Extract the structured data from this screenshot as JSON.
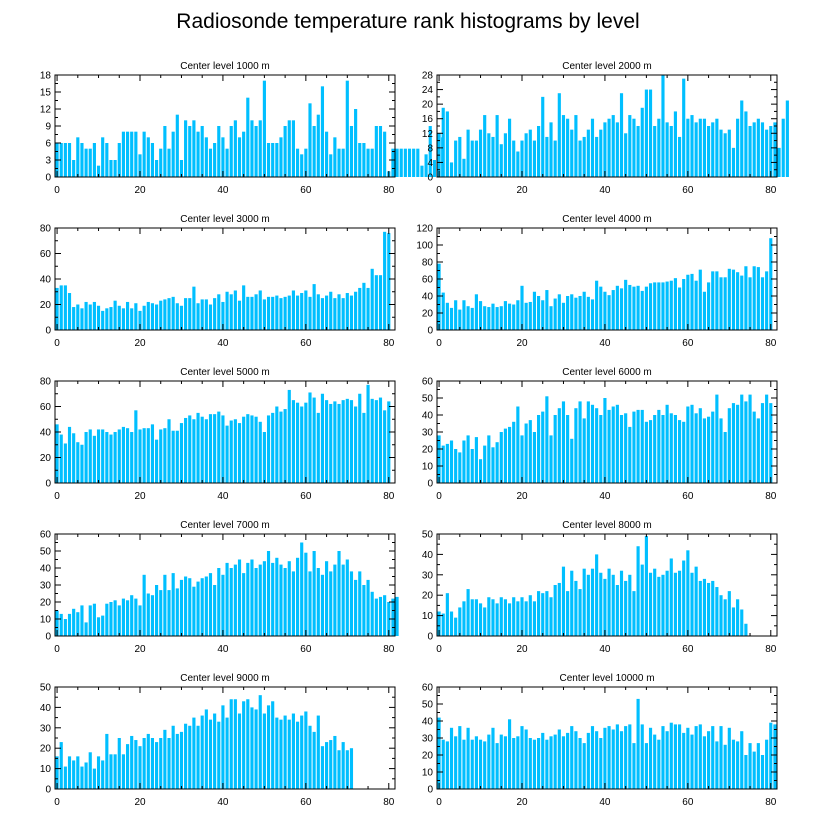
{
  "figure": {
    "title": "Radiosonde temperature rank histograms by level",
    "bar_color": "#00bfff",
    "axis_color": "#000000"
  },
  "chart_data": [
    {
      "type": "bar",
      "title": "Center level 1000 m",
      "xlim": [
        -0.5,
        81.5
      ],
      "ylim": [
        0,
        18
      ],
      "xticks": [
        0,
        20,
        40,
        60,
        80
      ],
      "yticks": [
        0,
        3,
        6,
        9,
        12,
        15,
        18
      ],
      "values": [
        6,
        6,
        6,
        6,
        3,
        7,
        6,
        5,
        5,
        6,
        2,
        7,
        6,
        3,
        3,
        6,
        8,
        8,
        8,
        8,
        4,
        8,
        7,
        6,
        3,
        5,
        9,
        5,
        8,
        11,
        3,
        10,
        9,
        10,
        8,
        9,
        7,
        5,
        6,
        9,
        7,
        5,
        9,
        10,
        7,
        8,
        14,
        10,
        9,
        10,
        17,
        6,
        6,
        6,
        7,
        9,
        10,
        10,
        5,
        4,
        5,
        13,
        9,
        11,
        16,
        8,
        4,
        7,
        5,
        5,
        17,
        9,
        12,
        6,
        6,
        5,
        5,
        9,
        9,
        8,
        1,
        5,
        5,
        5,
        5,
        5,
        5,
        5,
        2,
        4,
        9,
        3,
        6,
        7
      ],
      "note": ""
    },
    {
      "type": "bar",
      "title": "Center level 2000 m",
      "xlim": [
        -0.5,
        81.5
      ],
      "ylim": [
        0,
        28
      ],
      "xticks": [
        0,
        20,
        40,
        60,
        80
      ],
      "yticks": [
        0,
        4,
        8,
        12,
        16,
        20,
        24,
        28
      ],
      "values": [
        12,
        19,
        18,
        4,
        10,
        11,
        5,
        13,
        10,
        10,
        13,
        17,
        12,
        11,
        17,
        9,
        12,
        16,
        10,
        7,
        10,
        12,
        13,
        10,
        14,
        22,
        11,
        15,
        10,
        23,
        17,
        16,
        13,
        17,
        10,
        11,
        13,
        16,
        11,
        13,
        15,
        16,
        17,
        15,
        23,
        12,
        17,
        16,
        14,
        19,
        24,
        24,
        14,
        16,
        28,
        15,
        14,
        18,
        11,
        27,
        16,
        17,
        15,
        16,
        16,
        14,
        15,
        16,
        13,
        12,
        13,
        8,
        16,
        21,
        18,
        14,
        15,
        16,
        15,
        13,
        14,
        15,
        8,
        16,
        21
      ],
      "note": ""
    },
    {
      "type": "bar",
      "title": "Center level 3000 m",
      "xlim": [
        -0.5,
        81.5
      ],
      "ylim": [
        0,
        80
      ],
      "xticks": [
        0,
        20,
        40,
        60,
        80
      ],
      "yticks": [
        0,
        20,
        40,
        60,
        80
      ],
      "values": [
        33,
        35,
        35,
        29,
        18,
        20,
        17,
        22,
        20,
        22,
        19,
        15,
        17,
        18,
        23,
        19,
        17,
        22,
        17,
        21,
        15,
        19,
        22,
        21,
        20,
        23,
        24,
        25,
        26,
        21,
        19,
        25,
        25,
        34,
        21,
        24,
        24,
        20,
        25,
        28,
        22,
        30,
        28,
        31,
        23,
        35,
        26,
        26,
        28,
        31,
        24,
        26,
        26,
        27,
        25,
        26,
        27,
        31,
        27,
        29,
        31,
        26,
        36,
        28,
        25,
        27,
        30,
        25,
        28,
        25,
        29,
        27,
        30,
        33,
        37,
        33,
        48,
        43,
        43,
        77,
        76
      ],
      "note": ""
    },
    {
      "type": "bar",
      "title": "Center level 4000 m",
      "xlim": [
        -0.5,
        81.5
      ],
      "ylim": [
        0,
        120
      ],
      "xticks": [
        0,
        20,
        40,
        60,
        80
      ],
      "yticks": [
        0,
        20,
        40,
        60,
        80,
        100,
        120
      ],
      "values": [
        78,
        44,
        32,
        26,
        35,
        24,
        35,
        28,
        26,
        42,
        34,
        28,
        27,
        31,
        27,
        28,
        34,
        31,
        30,
        35,
        52,
        32,
        33,
        45,
        40,
        35,
        47,
        28,
        37,
        42,
        32,
        40,
        42,
        38,
        40,
        45,
        39,
        36,
        58,
        51,
        45,
        41,
        47,
        52,
        49,
        59,
        53,
        51,
        52,
        46,
        51,
        55,
        56,
        56,
        56,
        57,
        58,
        61,
        50,
        60,
        65,
        66,
        58,
        71,
        45,
        56,
        69,
        69,
        62,
        62,
        72,
        71,
        68,
        64,
        75,
        62,
        75,
        74,
        62,
        69,
        108
      ],
      "note": ""
    },
    {
      "type": "bar",
      "title": "Center level 5000 m",
      "xlim": [
        -0.5,
        81.5
      ],
      "ylim": [
        0,
        80
      ],
      "xticks": [
        0,
        20,
        40,
        60,
        80
      ],
      "yticks": [
        0,
        20,
        40,
        60,
        80
      ],
      "values": [
        46,
        38,
        31,
        44,
        39,
        32,
        30,
        40,
        42,
        37,
        42,
        42,
        40,
        38,
        40,
        42,
        44,
        43,
        40,
        57,
        42,
        43,
        43,
        46,
        34,
        42,
        43,
        50,
        41,
        41,
        47,
        51,
        53,
        50,
        55,
        52,
        50,
        54,
        54,
        56,
        53,
        45,
        49,
        50,
        47,
        52,
        54,
        53,
        52,
        48,
        40,
        53,
        55,
        60,
        56,
        58,
        73,
        65,
        63,
        60,
        63,
        71,
        67,
        55,
        70,
        65,
        62,
        64,
        62,
        65,
        66,
        65,
        60,
        70,
        55,
        77,
        66,
        65,
        67,
        57,
        64
      ],
      "note": ""
    },
    {
      "type": "bar",
      "title": "Center level 6000 m",
      "xlim": [
        -0.5,
        81.5
      ],
      "ylim": [
        0,
        60
      ],
      "xticks": [
        0,
        20,
        40,
        60,
        80
      ],
      "yticks": [
        0,
        10,
        20,
        30,
        40,
        50,
        60
      ],
      "values": [
        28,
        22,
        23,
        25,
        20,
        18,
        25,
        28,
        20,
        27,
        14,
        22,
        28,
        21,
        24,
        30,
        32,
        33,
        36,
        45,
        28,
        35,
        37,
        30,
        40,
        42,
        51,
        28,
        40,
        44,
        48,
        40,
        26,
        44,
        48,
        38,
        48,
        46,
        44,
        40,
        50,
        43,
        45,
        46,
        40,
        41,
        33,
        42,
        43,
        43,
        36,
        37,
        40,
        43,
        40,
        46,
        41,
        40,
        37,
        36,
        45,
        46,
        41,
        44,
        38,
        39,
        42,
        52,
        38,
        30,
        44,
        47,
        46,
        52,
        48,
        52,
        42,
        38,
        47,
        52,
        47
      ],
      "note": ""
    },
    {
      "type": "bar",
      "title": "Center level 7000 m",
      "xlim": [
        -0.5,
        81.5
      ],
      "ylim": [
        0,
        60
      ],
      "xticks": [
        0,
        20,
        40,
        60,
        80
      ],
      "yticks": [
        0,
        10,
        20,
        30,
        40,
        50,
        60
      ],
      "values": [
        15,
        13,
        10,
        13,
        16,
        14,
        18,
        8,
        18,
        19,
        11,
        12,
        19,
        20,
        21,
        18,
        22,
        21,
        24,
        22,
        18,
        36,
        25,
        24,
        30,
        27,
        36,
        27,
        37,
        28,
        33,
        35,
        34,
        29,
        32,
        34,
        35,
        37,
        30,
        40,
        36,
        43,
        40,
        42,
        45,
        37,
        43,
        45,
        40,
        42,
        44,
        50,
        43,
        46,
        42,
        40,
        44,
        38,
        46,
        55,
        49,
        38,
        50,
        40,
        36,
        44,
        38,
        42,
        50,
        42,
        45,
        38,
        33,
        38,
        30,
        33,
        26,
        22,
        23,
        24,
        20,
        22,
        23
      ],
      "note": ""
    },
    {
      "type": "bar",
      "title": "Center level 8000 m",
      "xlim": [
        -0.5,
        81.5
      ],
      "ylim": [
        0,
        50
      ],
      "xticks": [
        0,
        20,
        40,
        60,
        80
      ],
      "yticks": [
        0,
        10,
        20,
        30,
        40,
        50
      ],
      "values": [
        12,
        11,
        21,
        12,
        9,
        14,
        17,
        23,
        18,
        18,
        16,
        14,
        19,
        18,
        16,
        19,
        18,
        16,
        19,
        17,
        19,
        17,
        20,
        17,
        22,
        21,
        22,
        19,
        25,
        26,
        34,
        22,
        32,
        27,
        23,
        33,
        30,
        33,
        40,
        31,
        28,
        33,
        30,
        25,
        32,
        27,
        30,
        22,
        44,
        35,
        49,
        31,
        33,
        29,
        30,
        32,
        38,
        31,
        32,
        37,
        42,
        31,
        34,
        27,
        28,
        26,
        27,
        24,
        20,
        18,
        22,
        14,
        18,
        13,
        6
      ],
      "note": ""
    },
    {
      "type": "bar",
      "title": "Center level 9000 m",
      "xlim": [
        -0.5,
        81.5
      ],
      "ylim": [
        0,
        50
      ],
      "xticks": [
        0,
        20,
        40,
        60,
        80
      ],
      "yticks": [
        0,
        10,
        20,
        30,
        40,
        50
      ],
      "values": [
        16,
        23,
        11,
        16,
        14,
        16,
        11,
        13,
        18,
        10,
        16,
        14,
        27,
        17,
        17,
        25,
        17,
        22,
        26,
        24,
        21,
        25,
        27,
        25,
        23,
        25,
        29,
        25,
        31,
        27,
        28,
        32,
        31,
        35,
        31,
        36,
        39,
        34,
        37,
        33,
        41,
        35,
        44,
        44,
        37,
        43,
        44,
        40,
        39,
        46,
        37,
        41,
        43,
        35,
        34,
        36,
        34,
        37,
        33,
        36,
        38,
        31,
        28,
        36,
        21,
        23,
        24,
        26,
        19,
        23,
        19,
        20
      ],
      "note": ""
    },
    {
      "type": "bar",
      "title": "Center level 10000 m",
      "xlim": [
        -0.5,
        81.5
      ],
      "ylim": [
        0,
        60
      ],
      "xticks": [
        0,
        20,
        40,
        60,
        80
      ],
      "yticks": [
        0,
        10,
        20,
        30,
        40,
        50,
        60
      ],
      "values": [
        42,
        29,
        28,
        36,
        31,
        37,
        29,
        36,
        29,
        31,
        29,
        28,
        32,
        36,
        27,
        32,
        31,
        41,
        30,
        31,
        37,
        35,
        30,
        29,
        30,
        33,
        29,
        31,
        32,
        35,
        31,
        33,
        37,
        34,
        30,
        27,
        33,
        37,
        34,
        30,
        36,
        37,
        35,
        38,
        34,
        37,
        38,
        27,
        53,
        38,
        27,
        36,
        32,
        29,
        37,
        34,
        39,
        38,
        38,
        33,
        36,
        32,
        37,
        38,
        31,
        34,
        37,
        28,
        37,
        26,
        36,
        29,
        28,
        34,
        20,
        27,
        22,
        27,
        20,
        29,
        39,
        38
      ],
      "note": ""
    }
  ]
}
